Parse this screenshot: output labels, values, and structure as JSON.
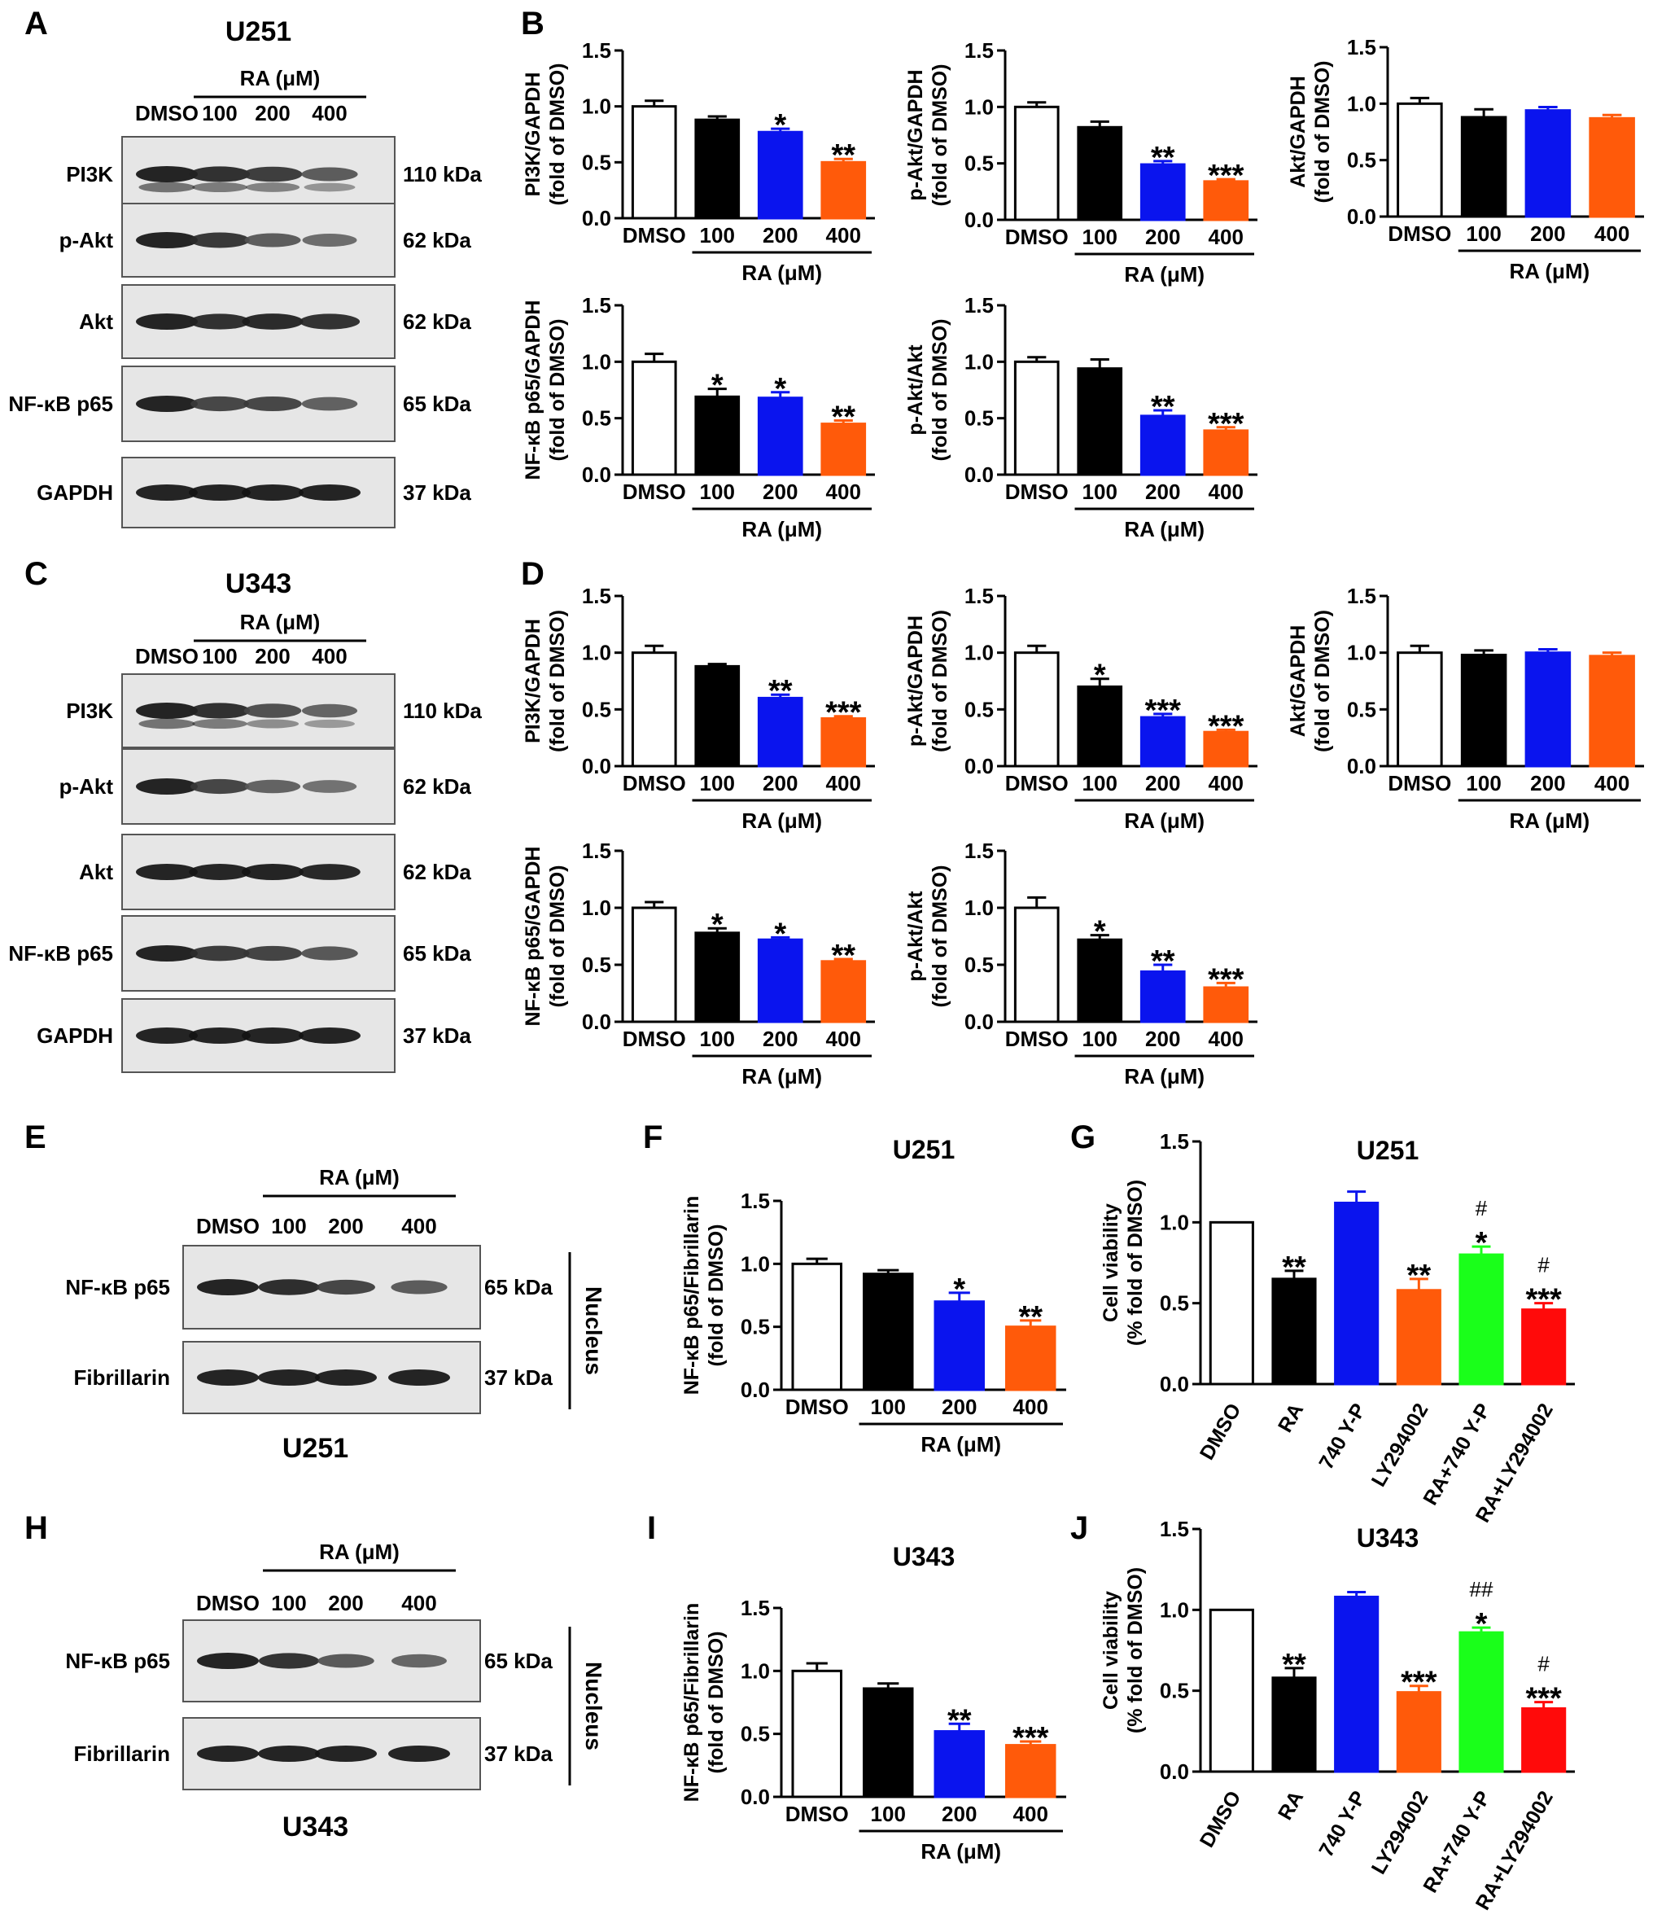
{
  "panel_letters": [
    "A",
    "B",
    "C",
    "D",
    "E",
    "F",
    "G",
    "H",
    "I",
    "J"
  ],
  "blots": [
    {
      "letter": "A",
      "cell_line": "U251",
      "treatment_label": "RA (μM)",
      "lanes": [
        "DMSO",
        "100",
        "200",
        "400"
      ],
      "rows": [
        {
          "protein": "PI3K",
          "size": "110 kDa",
          "intensity": [
            1.0,
            0.88,
            0.77,
            0.5
          ]
        },
        {
          "protein": "p-Akt",
          "size": "62 kDa",
          "intensity": [
            1.0,
            0.82,
            0.49,
            0.34
          ]
        },
        {
          "protein": "Akt",
          "size": "62 kDa",
          "intensity": [
            1.0,
            0.88,
            0.94,
            0.87
          ]
        },
        {
          "protein": "NF-κB p65",
          "size": "65 kDa",
          "intensity": [
            1.0,
            0.69,
            0.68,
            0.45
          ]
        },
        {
          "protein": "GAPDH",
          "size": "37 kDa",
          "intensity": [
            1.0,
            1.0,
            1.0,
            1.0
          ]
        }
      ]
    },
    {
      "letter": "C",
      "cell_line": "U343",
      "treatment_label": "RA (μM)",
      "lanes": [
        "DMSO",
        "100",
        "200",
        "400"
      ],
      "rows": [
        {
          "protein": "PI3K",
          "size": "110 kDa",
          "intensity": [
            1.0,
            0.88,
            0.6,
            0.42
          ]
        },
        {
          "protein": "p-Akt",
          "size": "62 kDa",
          "intensity": [
            1.0,
            0.7,
            0.43,
            0.3
          ]
        },
        {
          "protein": "Akt",
          "size": "62 kDa",
          "intensity": [
            1.0,
            0.98,
            1.0,
            0.97
          ]
        },
        {
          "protein": "NF-κB p65",
          "size": "65 kDa",
          "intensity": [
            1.0,
            0.78,
            0.72,
            0.53
          ]
        },
        {
          "protein": "GAPDH",
          "size": "37 kDa",
          "intensity": [
            1.0,
            1.0,
            1.0,
            1.0
          ]
        }
      ]
    },
    {
      "letter": "E",
      "cell_line": "U251",
      "treatment_label": "RA (μM)",
      "lanes": [
        "DMSO",
        "100",
        "200",
        "400"
      ],
      "fraction_label": "Nucleus",
      "rows": [
        {
          "protein": "NF-κB p65",
          "size": "65 kDa",
          "intensity": [
            1.0,
            0.92,
            0.7,
            0.5
          ]
        },
        {
          "protein": "Fibrillarin",
          "size": "37 kDa",
          "intensity": [
            1.0,
            1.0,
            1.0,
            1.0
          ]
        }
      ]
    },
    {
      "letter": "H",
      "cell_line": "U343",
      "treatment_label": "RA (μM)",
      "lanes": [
        "DMSO",
        "100",
        "200",
        "400"
      ],
      "fraction_label": "Nucleus",
      "rows": [
        {
          "protein": "NF-κB p65",
          "size": "65 kDa",
          "intensity": [
            1.0,
            0.86,
            0.52,
            0.41
          ]
        },
        {
          "protein": "Fibrillarin",
          "size": "37 kDa",
          "intensity": [
            1.0,
            1.0,
            1.0,
            1.0
          ]
        }
      ]
    }
  ],
  "colors": {
    "DMSO": "#ffffff",
    "100": "#000000",
    "200": "#0a14ee",
    "400": "#ff5a0a",
    "green": "#1aff1a",
    "red": "#ff0a0a"
  },
  "chart_data": [
    {
      "panel": "B",
      "type": "bar",
      "categories": [
        "DMSO",
        "100",
        "200",
        "400"
      ],
      "values": [
        1.0,
        0.88,
        0.77,
        0.5
      ],
      "errors": [
        0.05,
        0.03,
        0.03,
        0.03
      ],
      "sig": [
        "",
        "",
        "*",
        "**"
      ],
      "ylabel": [
        "PI3K/GAPDH",
        "(fold of DMSO)"
      ],
      "xgroup_label": "RA (μM)",
      "ylim": [
        0,
        1.5
      ],
      "yticks": [
        "0.0",
        "0.5",
        "1.0",
        "1.5"
      ]
    },
    {
      "panel": "B",
      "type": "bar",
      "categories": [
        "DMSO",
        "100",
        "200",
        "400"
      ],
      "values": [
        1.0,
        0.82,
        0.49,
        0.34
      ],
      "errors": [
        0.04,
        0.05,
        0.03,
        0.02
      ],
      "sig": [
        "",
        "",
        "**",
        "***"
      ],
      "ylabel": [
        "p-Akt/GAPDH",
        "(fold of DMSO)"
      ],
      "xgroup_label": "RA (μM)",
      "ylim": [
        0,
        1.5
      ],
      "yticks": [
        "0.0",
        "0.5",
        "1.0",
        "1.5"
      ]
    },
    {
      "panel": "B",
      "type": "bar",
      "categories": [
        "DMSO",
        "100",
        "200",
        "400"
      ],
      "values": [
        1.0,
        0.88,
        0.94,
        0.87
      ],
      "errors": [
        0.05,
        0.07,
        0.03,
        0.03
      ],
      "sig": [
        "",
        "",
        "",
        ""
      ],
      "ylabel": [
        "Akt/GAPDH",
        "(fold of DMSO)"
      ],
      "xgroup_label": "RA (μM)",
      "ylim": [
        0,
        1.5
      ],
      "yticks": [
        "0.0",
        "0.5",
        "1.0",
        "1.5"
      ]
    },
    {
      "panel": "B",
      "type": "bar",
      "categories": [
        "DMSO",
        "100",
        "200",
        "400"
      ],
      "values": [
        1.0,
        0.69,
        0.68,
        0.45
      ],
      "errors": [
        0.07,
        0.07,
        0.05,
        0.03
      ],
      "sig": [
        "",
        "*",
        "*",
        "**"
      ],
      "ylabel": [
        "NF-κB p65/GAPDH",
        "(fold of DMSO)"
      ],
      "xgroup_label": "RA (μM)",
      "ylim": [
        0,
        1.5
      ],
      "yticks": [
        "0.0",
        "0.5",
        "1.0",
        "1.5"
      ]
    },
    {
      "panel": "B",
      "type": "bar",
      "categories": [
        "DMSO",
        "100",
        "200",
        "400"
      ],
      "values": [
        1.0,
        0.94,
        0.52,
        0.39
      ],
      "errors": [
        0.04,
        0.08,
        0.05,
        0.03
      ],
      "sig": [
        "",
        "",
        "**",
        "***"
      ],
      "ylabel": [
        "p-Akt/Akt",
        "(fold of DMSO)"
      ],
      "xgroup_label": "RA (μM)",
      "ylim": [
        0,
        1.5
      ],
      "yticks": [
        "0.0",
        "0.5",
        "1.0",
        "1.5"
      ]
    },
    {
      "panel": "D",
      "type": "bar",
      "categories": [
        "DMSO",
        "100",
        "200",
        "400"
      ],
      "values": [
        1.0,
        0.88,
        0.6,
        0.42
      ],
      "errors": [
        0.06,
        0.02,
        0.03,
        0.02
      ],
      "sig": [
        "",
        "",
        "**",
        "***"
      ],
      "ylabel": [
        "PI3K/GAPDH",
        "(fold of DMSO)"
      ],
      "xgroup_label": "RA (μM)",
      "ylim": [
        0,
        1.5
      ],
      "yticks": [
        "0.0",
        "0.5",
        "1.0",
        "1.5"
      ]
    },
    {
      "panel": "D",
      "type": "bar",
      "categories": [
        "DMSO",
        "100",
        "200",
        "400"
      ],
      "values": [
        1.0,
        0.7,
        0.43,
        0.3
      ],
      "errors": [
        0.06,
        0.07,
        0.03,
        0.02
      ],
      "sig": [
        "",
        "*",
        "***",
        "***"
      ],
      "ylabel": [
        "p-Akt/GAPDH",
        "(fold of DMSO)"
      ],
      "xgroup_label": "RA (μM)",
      "ylim": [
        0,
        1.5
      ],
      "yticks": [
        "0.0",
        "0.5",
        "1.0",
        "1.5"
      ]
    },
    {
      "panel": "D",
      "type": "bar",
      "categories": [
        "DMSO",
        "100",
        "200",
        "400"
      ],
      "values": [
        1.0,
        0.98,
        1.0,
        0.97
      ],
      "errors": [
        0.06,
        0.04,
        0.03,
        0.03
      ],
      "sig": [
        "",
        "",
        "",
        ""
      ],
      "ylabel": [
        "Akt/GAPDH",
        "(fold of DMSO)"
      ],
      "xgroup_label": "RA (μM)",
      "ylim": [
        0,
        1.5
      ],
      "yticks": [
        "0.0",
        "0.5",
        "1.0",
        "1.5"
      ]
    },
    {
      "panel": "D",
      "type": "bar",
      "categories": [
        "DMSO",
        "100",
        "200",
        "400"
      ],
      "values": [
        1.0,
        0.78,
        0.72,
        0.53
      ],
      "errors": [
        0.05,
        0.04,
        0.02,
        0.02
      ],
      "sig": [
        "",
        "*",
        "*",
        "**"
      ],
      "ylabel": [
        "NF-κB p65/GAPDH",
        "(fold of DMSO)"
      ],
      "xgroup_label": "RA (μM)",
      "ylim": [
        0,
        1.5
      ],
      "yticks": [
        "0.0",
        "0.5",
        "1.0",
        "1.5"
      ]
    },
    {
      "panel": "D",
      "type": "bar",
      "categories": [
        "DMSO",
        "100",
        "200",
        "400"
      ],
      "values": [
        1.0,
        0.72,
        0.44,
        0.3
      ],
      "errors": [
        0.09,
        0.04,
        0.06,
        0.04
      ],
      "sig": [
        "",
        "*",
        "**",
        "***"
      ],
      "ylabel": [
        "p-Akt/Akt",
        "(fold of DMSO)"
      ],
      "xgroup_label": "RA (μM)",
      "ylim": [
        0,
        1.5
      ],
      "yticks": [
        "0.0",
        "0.5",
        "1.0",
        "1.5"
      ]
    },
    {
      "panel": "F",
      "type": "bar",
      "title": "U251",
      "categories": [
        "DMSO",
        "100",
        "200",
        "400"
      ],
      "values": [
        1.0,
        0.92,
        0.7,
        0.5
      ],
      "errors": [
        0.04,
        0.03,
        0.07,
        0.05
      ],
      "sig": [
        "",
        "",
        "*",
        "**"
      ],
      "ylabel": [
        "NF-κB p65/Fibrillarin",
        "(fold of DMSO)"
      ],
      "xgroup_label": "RA (μM)",
      "ylim": [
        0,
        1.5
      ],
      "yticks": [
        "0.0",
        "0.5",
        "1.0",
        "1.5"
      ]
    },
    {
      "panel": "G",
      "type": "bar",
      "title": "U251",
      "categories": [
        "DMSO",
        "RA",
        "740 Y-P",
        "LY294002",
        "RA+740 Y-P",
        "RA+LY294002"
      ],
      "values": [
        1.0,
        0.65,
        1.12,
        0.58,
        0.8,
        0.46
      ],
      "errors": [
        0.0,
        0.05,
        0.07,
        0.07,
        0.05,
        0.04
      ],
      "sig": [
        "",
        "**",
        "",
        "**",
        "#\n*",
        "#\n***"
      ],
      "ylabel": [
        "Cell viability",
        "(% fold of DMSO)"
      ],
      "ylim": [
        0,
        1.5
      ],
      "yticks": [
        "0.0",
        "0.5",
        "1.0",
        "1.5"
      ]
    },
    {
      "panel": "I",
      "type": "bar",
      "title": "U343",
      "categories": [
        "DMSO",
        "100",
        "200",
        "400"
      ],
      "values": [
        1.0,
        0.86,
        0.52,
        0.41
      ],
      "errors": [
        0.06,
        0.04,
        0.06,
        0.03
      ],
      "sig": [
        "",
        "",
        "**",
        "***"
      ],
      "ylabel": [
        "NF-κB p65/Fibrillarin",
        "(fold of DMSO)"
      ],
      "xgroup_label": "RA (μM)",
      "ylim": [
        0,
        1.5
      ],
      "yticks": [
        "0.0",
        "0.5",
        "1.0",
        "1.5"
      ]
    },
    {
      "panel": "J",
      "type": "bar",
      "title": "U343",
      "categories": [
        "DMSO",
        "RA",
        "740 Y-P",
        "LY294002",
        "RA+740 Y-P",
        "RA+LY294002"
      ],
      "values": [
        1.0,
        0.58,
        1.08,
        0.49,
        0.86,
        0.39
      ],
      "errors": [
        0.0,
        0.06,
        0.03,
        0.04,
        0.03,
        0.04
      ],
      "sig": [
        "",
        "**",
        "",
        "***",
        "##\n*",
        "#\n***"
      ],
      "ylabel": [
        "Cell viability",
        "(% fold of DMSO)"
      ],
      "ylim": [
        0,
        1.5
      ],
      "yticks": [
        "0.0",
        "0.5",
        "1.0",
        "1.5"
      ]
    }
  ]
}
